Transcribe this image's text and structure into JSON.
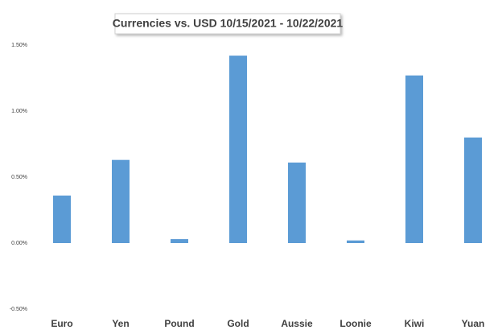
{
  "chart_data": {
    "type": "bar",
    "title": "Currencies vs. USD 10/15/2021 - 10/22/2021",
    "categories": [
      "Euro",
      "Yen",
      "Pound",
      "Gold",
      "Aussie",
      "Loonie",
      "Kiwi",
      "Yuan"
    ],
    "values": [
      0.36,
      0.63,
      0.03,
      1.42,
      0.61,
      0.02,
      1.27,
      0.8
    ],
    "color": "#5b9bd5",
    "ylim": [
      -0.5,
      1.5
    ],
    "yticks": [
      {
        "value": -0.5,
        "label": "-0.50%"
      },
      {
        "value": 0,
        "label": "0.00%"
      },
      {
        "value": 0.5,
        "label": "0.50%"
      },
      {
        "value": 1,
        "label": "1.00%"
      },
      {
        "value": 1.5,
        "label": "1.50%"
      }
    ],
    "grid": false
  }
}
